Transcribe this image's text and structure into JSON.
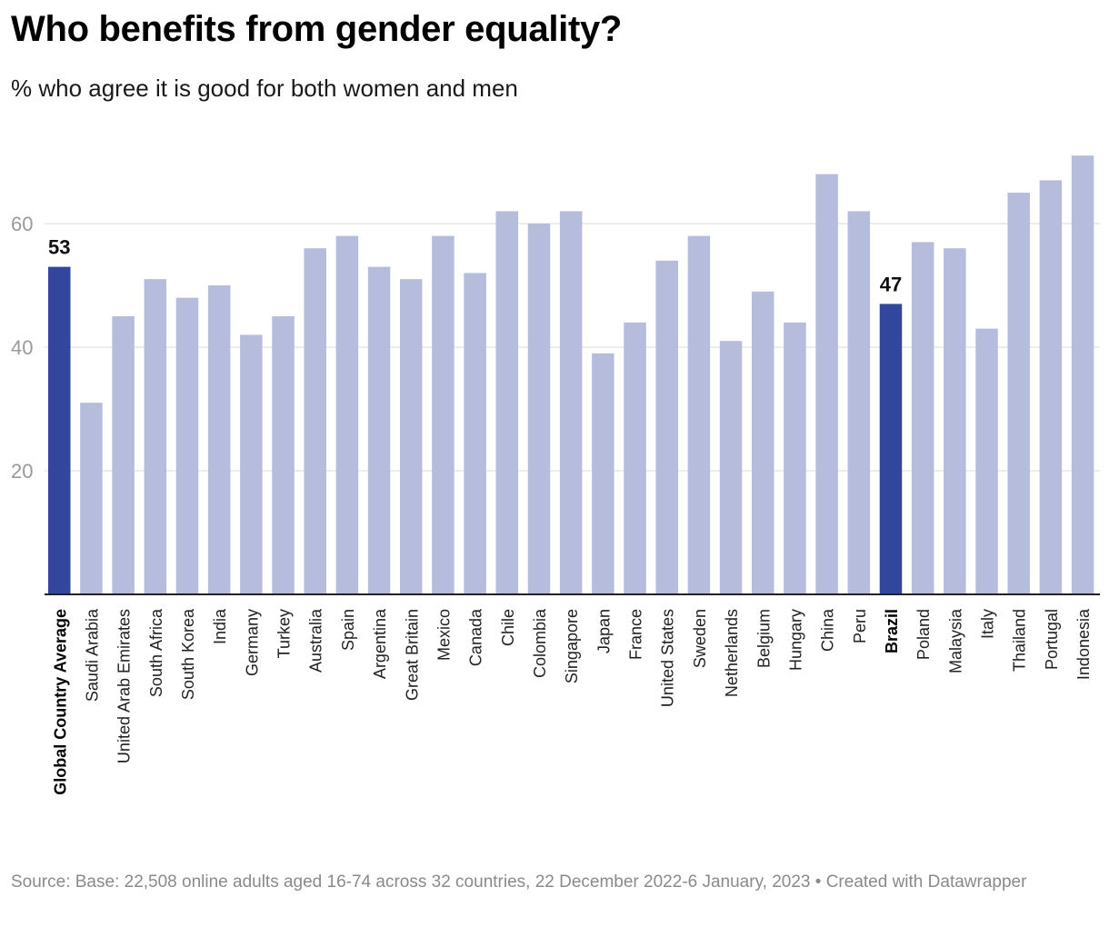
{
  "header": {
    "title": "Who benefits from gender equality?",
    "subtitle": "% who agree it is good for both women and men"
  },
  "footer": {
    "source": "Source: Base: 22,508 online adults aged 16-74 across 32 countries, 22 December 2022-6 January, 2023",
    "credit": "• Created with Datawrapper"
  },
  "colors": {
    "highlight": "#32469b",
    "bar": "#b6bcdc",
    "grid": "#e2e2e2",
    "tick_text": "#9a9a9a",
    "baseline": "#222222"
  },
  "chart_data": {
    "type": "bar",
    "title": "Who benefits from gender equality?",
    "subtitle": "% who agree it is good for both women and men",
    "categories": [
      "Global Country Average",
      "Saudi Arabia",
      "United Arab Emirates",
      "South Africa",
      "South Korea",
      "India",
      "Germany",
      "Turkey",
      "Australia",
      "Spain",
      "Argentina",
      "Great Britain",
      "Mexico",
      "Canada",
      "Chile",
      "Colombia",
      "Singapore",
      "Japan",
      "France",
      "United States",
      "Sweden",
      "Netherlands",
      "Belgium",
      "Hungary",
      "China",
      "Peru",
      "Brazil",
      "Poland",
      "Malaysia",
      "Italy",
      "Thailand",
      "Portugal",
      "Indonesia"
    ],
    "values": [
      53,
      31,
      45,
      51,
      48,
      50,
      42,
      45,
      56,
      58,
      53,
      51,
      58,
      52,
      62,
      60,
      62,
      39,
      44,
      54,
      58,
      41,
      49,
      44,
      68,
      62,
      47,
      57,
      56,
      43,
      65,
      67,
      71
    ],
    "highlighted": [
      "Global Country Average",
      "Brazil"
    ],
    "data_labels": {
      "Global Country Average": "53",
      "Brazil": "47"
    },
    "yticks": [
      20,
      40,
      60
    ],
    "ylim": [
      0,
      71
    ],
    "xlabel": "",
    "ylabel": "",
    "grid": true,
    "legend": "none"
  }
}
